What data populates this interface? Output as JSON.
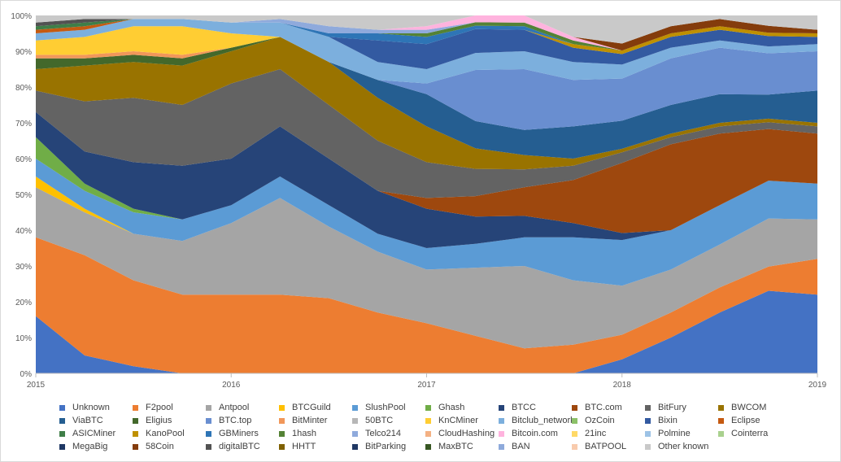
{
  "chart_data": {
    "type": "area",
    "stacked": true,
    "normalized": true,
    "x_range": [
      "2015-01-01",
      "2019-01-01"
    ],
    "x_ticks": [
      "2015",
      "2016",
      "2017",
      "2018",
      "2019"
    ],
    "ylim": [
      0,
      100
    ],
    "y_ticks": [
      "0%",
      "10%",
      "20%",
      "30%",
      "40%",
      "50%",
      "60%",
      "70%",
      "80%",
      "90%",
      "100%"
    ],
    "grid": false,
    "legend_position": "bottom",
    "dates": [
      "2015-01",
      "2015-04",
      "2015-07",
      "2015-10",
      "2016-01",
      "2016-04",
      "2016-07",
      "2016-10",
      "2017-01",
      "2017-04",
      "2017-07",
      "2017-10",
      "2018-01",
      "2018-04",
      "2018-07",
      "2018-10",
      "2019-01"
    ],
    "series": [
      {
        "name": "Unknown",
        "color": "#4472c4",
        "values": [
          16,
          5,
          2,
          0,
          0,
          0,
          0,
          0,
          0,
          0,
          0,
          0,
          4,
          10,
          17,
          24,
          22
        ]
      },
      {
        "name": "F2pool",
        "color": "#ed7d31",
        "values": [
          22,
          28,
          24,
          22,
          22,
          22,
          21,
          17,
          14,
          11,
          7,
          8,
          7,
          7,
          7,
          7,
          10
        ]
      },
      {
        "name": "Antpool",
        "color": "#a5a5a5",
        "values": [
          14,
          12,
          13,
          15,
          20,
          27,
          20,
          17,
          15,
          20,
          23,
          18,
          14,
          12,
          12,
          14,
          11
        ]
      },
      {
        "name": "BTCGuild",
        "color": "#ffc000",
        "values": [
          3,
          1,
          0,
          0,
          0,
          0,
          0,
          0,
          0,
          0,
          0,
          0,
          0,
          0,
          0,
          0,
          0
        ]
      },
      {
        "name": "SlushPool",
        "color": "#5b9bd5",
        "values": [
          5,
          5,
          6,
          6,
          5,
          6,
          6,
          5,
          6,
          7,
          8,
          12,
          13,
          11,
          11,
          11,
          10
        ]
      },
      {
        "name": "Ghash",
        "color": "#70ad47",
        "values": [
          6,
          2,
          1,
          0,
          0,
          0,
          0,
          0,
          0,
          0,
          0,
          0,
          0,
          0,
          0,
          0,
          0
        ]
      },
      {
        "name": "BTCC",
        "color": "#264478",
        "values": [
          7,
          9,
          13,
          15,
          13,
          14,
          13,
          12,
          11,
          8,
          6,
          4,
          2,
          0,
          0,
          0,
          0
        ]
      },
      {
        "name": "BTC.com",
        "color": "#9e480e",
        "values": [
          0,
          0,
          0,
          0,
          0,
          0,
          0,
          0,
          3,
          6,
          8,
          12,
          20,
          24,
          20,
          15,
          14
        ]
      },
      {
        "name": "BitFury",
        "color": "#636363",
        "values": [
          6,
          14,
          18,
          17,
          21,
          16,
          15,
          14,
          10,
          8,
          5,
          4,
          3,
          2,
          2,
          2,
          2
        ]
      },
      {
        "name": "BWCOM",
        "color": "#997300",
        "values": [
          6,
          10,
          10,
          11,
          9,
          9,
          12,
          12,
          10,
          6,
          4,
          2,
          1,
          1,
          1,
          1,
          1
        ]
      },
      {
        "name": "ViaBTC",
        "color": "#255e91",
        "values": [
          0,
          0,
          0,
          0,
          0,
          0,
          0,
          5,
          9,
          8,
          7,
          9,
          8,
          8,
          8,
          7,
          9
        ]
      },
      {
        "name": "Eligius",
        "color": "#43682b",
        "values": [
          3,
          2,
          2,
          2,
          1,
          0,
          0,
          0,
          0,
          0,
          0,
          0,
          0,
          0,
          0,
          0,
          0
        ]
      },
      {
        "name": "BTC.top",
        "color": "#698ed0",
        "values": [
          0,
          0,
          0,
          0,
          0,
          0,
          0,
          0,
          3,
          15,
          17,
          13,
          12,
          13,
          13,
          12,
          11
        ]
      },
      {
        "name": "BitMinter",
        "color": "#f1975a",
        "values": [
          1,
          1,
          1,
          1,
          0,
          0,
          0,
          0,
          0,
          0,
          0,
          0,
          0,
          0,
          0,
          0,
          0
        ]
      },
      {
        "name": "50BTC",
        "color": "#b7b7b7",
        "values": [
          0,
          0,
          0,
          0,
          0,
          0,
          0,
          0,
          0,
          0,
          0,
          0,
          0,
          0,
          0,
          0,
          0
        ]
      },
      {
        "name": "KnCMiner",
        "color": "#ffcd33",
        "values": [
          4,
          5,
          7,
          8,
          4,
          0,
          0,
          0,
          0,
          0,
          0,
          0,
          0,
          0,
          0,
          0,
          0
        ]
      },
      {
        "name": "Bitclub_network",
        "color": "#7cafdd",
        "values": [
          2,
          2,
          2,
          2,
          3,
          4,
          7,
          5,
          4,
          5,
          5,
          5,
          4,
          3,
          2,
          2,
          2
        ]
      },
      {
        "name": "OzCoin",
        "color": "#8cc168",
        "values": [
          0,
          0,
          0,
          0,
          0,
          0,
          0,
          0,
          0,
          0,
          0,
          0,
          0,
          0,
          0,
          0,
          0
        ]
      },
      {
        "name": "Bixin",
        "color": "#335aa1",
        "values": [
          0,
          0,
          0,
          0,
          0,
          0,
          0,
          6,
          7,
          7,
          6,
          4,
          3,
          3,
          3,
          3,
          2
        ]
      },
      {
        "name": "Eclipse",
        "color": "#c55a11",
        "values": [
          1,
          1,
          0,
          0,
          0,
          0,
          0,
          0,
          0,
          0,
          0,
          0,
          0,
          0,
          0,
          0,
          0
        ]
      },
      {
        "name": "ASICMiner",
        "color": "#3f7e48",
        "values": [
          1,
          1,
          0,
          0,
          0,
          0,
          0,
          0,
          0,
          0,
          0,
          0,
          0,
          0,
          0,
          0,
          0
        ]
      },
      {
        "name": "KanoPool",
        "color": "#bf9000",
        "values": [
          0,
          0,
          0,
          0,
          0,
          0,
          0,
          0,
          0,
          0,
          0,
          1,
          1,
          1,
          1,
          1,
          1
        ]
      },
      {
        "name": "GBMiners",
        "color": "#2e75b6",
        "values": [
          0,
          0,
          0,
          0,
          0,
          0,
          1,
          2,
          2,
          1,
          1,
          0,
          0,
          0,
          0,
          0,
          0
        ]
      },
      {
        "name": "1hash",
        "color": "#548235",
        "values": [
          0,
          0,
          0,
          0,
          0,
          0,
          0,
          0,
          1,
          1,
          1,
          1,
          0,
          0,
          0,
          0,
          0
        ]
      },
      {
        "name": "Telco214",
        "color": "#8faadc",
        "values": [
          0,
          0,
          0,
          0,
          0,
          1,
          2,
          1,
          1,
          0,
          0,
          0,
          0,
          0,
          0,
          0,
          0
        ]
      },
      {
        "name": "CloudHashing",
        "color": "#f4b183",
        "values": [
          0,
          0,
          0,
          0,
          0,
          0,
          0,
          0,
          0,
          0,
          0,
          0,
          0,
          0,
          0,
          0,
          0
        ]
      },
      {
        "name": "Bitcoin.com",
        "color": "#ffb3de",
        "values": [
          0,
          0,
          0,
          0,
          0,
          0,
          0,
          0,
          1,
          2,
          2,
          1,
          0,
          0,
          0,
          0,
          0
        ]
      },
      {
        "name": "21inc",
        "color": "#ffd966",
        "values": [
          0,
          0,
          0,
          0,
          0,
          0,
          0,
          0,
          0,
          0,
          0,
          0,
          0,
          0,
          0,
          0,
          0
        ]
      },
      {
        "name": "Polmine",
        "color": "#9dc3e6",
        "values": [
          0,
          0,
          0,
          0,
          0,
          0,
          0,
          0,
          0,
          0,
          0,
          0,
          0,
          0,
          0,
          0,
          0
        ]
      },
      {
        "name": "Cointerra",
        "color": "#a9d18e",
        "values": [
          0,
          0,
          0,
          0,
          0,
          0,
          0,
          0,
          0,
          0,
          0,
          0,
          0,
          0,
          0,
          0,
          0
        ]
      },
      {
        "name": "MegaBig",
        "color": "#1f3864",
        "values": [
          0,
          0,
          0,
          0,
          0,
          0,
          0,
          0,
          0,
          0,
          0,
          0,
          0,
          0,
          0,
          0,
          0
        ]
      },
      {
        "name": "58Coin",
        "color": "#843c0c",
        "values": [
          0,
          0,
          0,
          0,
          0,
          0,
          0,
          0,
          0,
          0,
          0,
          0,
          2,
          2,
          2,
          2,
          1
        ]
      },
      {
        "name": "digitalBTC",
        "color": "#525252",
        "values": [
          1,
          1,
          0,
          0,
          0,
          0,
          0,
          0,
          0,
          0,
          0,
          0,
          0,
          0,
          0,
          0,
          0
        ]
      },
      {
        "name": "HHTT",
        "color": "#7f6000",
        "values": [
          0,
          0,
          0,
          0,
          0,
          0,
          0,
          0,
          0,
          0,
          0,
          0,
          0,
          0,
          0,
          0,
          0
        ]
      },
      {
        "name": "BitParking",
        "color": "#203864",
        "values": [
          0,
          0,
          0,
          0,
          0,
          0,
          0,
          0,
          0,
          0,
          0,
          0,
          0,
          0,
          0,
          0,
          0
        ]
      },
      {
        "name": "MaxBTC",
        "color": "#385723",
        "values": [
          0,
          0,
          0,
          0,
          0,
          0,
          0,
          0,
          0,
          0,
          0,
          0,
          0,
          0,
          0,
          0,
          0
        ]
      },
      {
        "name": "BAN",
        "color": "#8eaadb",
        "values": [
          0,
          0,
          0,
          0,
          0,
          0,
          0,
          0,
          0,
          0,
          0,
          0,
          0,
          0,
          0,
          0,
          0
        ]
      },
      {
        "name": "BATPOOL",
        "color": "#f8cbad",
        "values": [
          0,
          0,
          0,
          0,
          0,
          0,
          0,
          0,
          0,
          0,
          0,
          0,
          0,
          0,
          0,
          0,
          0
        ]
      },
      {
        "name": "Other known",
        "color": "#c9c9c9",
        "values": [
          2,
          1,
          1,
          1,
          2,
          1,
          3,
          4,
          3,
          0,
          0,
          6,
          8,
          3,
          1,
          3,
          4
        ]
      }
    ]
  }
}
